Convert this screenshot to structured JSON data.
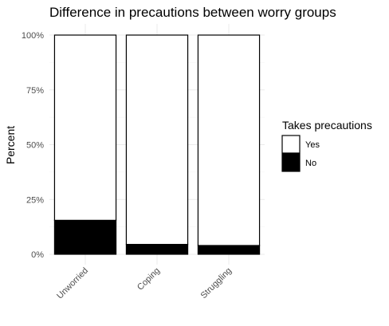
{
  "chart_data": {
    "type": "bar",
    "stacked": true,
    "title": "Difference in precautions between worry groups",
    "xlabel": "",
    "ylabel": "Percent",
    "categories": [
      "Unworried",
      "Coping",
      "Struggling"
    ],
    "series": [
      {
        "name": "No",
        "values": [
          0.155,
          0.045,
          0.04
        ],
        "color": "#000000"
      },
      {
        "name": "Yes",
        "values": [
          0.845,
          0.955,
          0.96
        ],
        "color": "#ffffff"
      }
    ],
    "ylim": [
      0,
      1
    ],
    "yticks": [
      0,
      0.25,
      0.5,
      0.75,
      1
    ],
    "ytick_labels": [
      "0%",
      "25%",
      "50%",
      "75%",
      "100%"
    ],
    "legend": {
      "title": "Takes precautions",
      "position": "right",
      "entries": [
        {
          "label": "Yes",
          "color": "#ffffff"
        },
        {
          "label": "No",
          "color": "#000000"
        }
      ]
    },
    "grid": true,
    "bar_edge_color": "#000000",
    "grid_color": "#ebebeb"
  }
}
